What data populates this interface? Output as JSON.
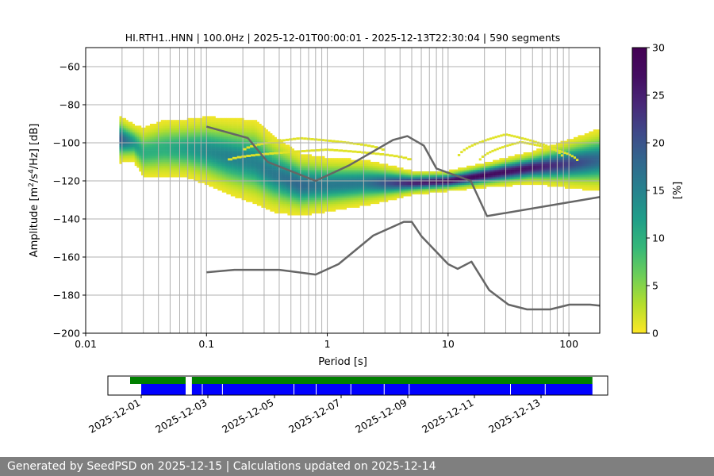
{
  "chart_data": [
    {
      "type": "heatmap",
      "title": "HI.RTH1..HNN | 100.0Hz | 2025-12-01T00:00:01 - 2025-12-13T22:30:04 | 590 segments",
      "xlabel": "Period [s]",
      "ylabel_parts": [
        "Amplitude [m",
        "2",
        "/s",
        "4",
        "/Hz] [dB]"
      ],
      "x_scale": "log",
      "xlim": [
        0.01,
        180
      ],
      "ylim": [
        -200,
        -50
      ],
      "x_ticks": [
        {
          "value": 0.01,
          "label": "0.01"
        },
        {
          "value": 0.1,
          "label": "0.1"
        },
        {
          "value": 1,
          "label": "1"
        },
        {
          "value": 10,
          "label": "10"
        },
        {
          "value": 100,
          "label": "100"
        }
      ],
      "y_ticks": [
        -60,
        -80,
        -100,
        -120,
        -140,
        -160,
        -180,
        -200
      ],
      "y_tick_labels": [
        "−60",
        "−80",
        "−100",
        "−120",
        "−140",
        "−160",
        "−180",
        "−200"
      ],
      "grid_periods": [
        0.02,
        0.03,
        0.04,
        0.05,
        0.06,
        0.07,
        0.08,
        0.09,
        0.1,
        0.2,
        0.3,
        0.4,
        0.5,
        0.6,
        0.7,
        0.8,
        0.9,
        1,
        2,
        3,
        4,
        5,
        6,
        7,
        8,
        9,
        10,
        20,
        30,
        40,
        50,
        60,
        70,
        80,
        90,
        100
      ],
      "grid_ylines": [
        -60,
        -80,
        -100,
        -120,
        -140,
        -160,
        -180
      ],
      "colorbar": {
        "label": "[%]",
        "range": [
          0,
          30
        ],
        "ticks": [
          0,
          5,
          10,
          15,
          20,
          25,
          30
        ],
        "colormap": "viridis_r"
      },
      "ppsd_ridge": [
        {
          "period": 0.019,
          "mode_db": -98,
          "width_db": 6,
          "peak_pct": 20
        },
        {
          "period": 0.025,
          "mode_db": -100,
          "width_db": 5,
          "peak_pct": 13
        },
        {
          "period": 0.03,
          "mode_db": -105,
          "width_db": 7,
          "peak_pct": 10
        },
        {
          "period": 0.045,
          "mode_db": -103,
          "width_db": 8,
          "peak_pct": 10
        },
        {
          "period": 0.07,
          "mode_db": -103,
          "width_db": 8,
          "peak_pct": 12
        },
        {
          "period": 0.1,
          "mode_db": -104,
          "width_db": 9,
          "peak_pct": 14
        },
        {
          "period": 0.15,
          "mode_db": -107,
          "width_db": 10,
          "peak_pct": 15
        },
        {
          "period": 0.25,
          "mode_db": -110,
          "width_db": 11,
          "peak_pct": 15
        },
        {
          "period": 0.35,
          "mode_db": -116,
          "width_db": 10,
          "peak_pct": 16
        },
        {
          "period": 0.6,
          "mode_db": -122,
          "width_db": 8,
          "peak_pct": 18
        },
        {
          "period": 1.0,
          "mode_db": -122,
          "width_db": 7,
          "peak_pct": 16
        },
        {
          "period": 2.0,
          "mode_db": -121,
          "width_db": 6,
          "peak_pct": 16
        },
        {
          "period": 5.0,
          "mode_db": -121,
          "width_db": 3,
          "peak_pct": 25
        },
        {
          "period": 10,
          "mode_db": -120,
          "width_db": 2.5,
          "peak_pct": 28
        },
        {
          "period": 20,
          "mode_db": -117,
          "width_db": 3,
          "peak_pct": 28
        },
        {
          "period": 50,
          "mode_db": -113,
          "width_db": 4,
          "peak_pct": 26
        },
        {
          "period": 100,
          "mode_db": -111,
          "width_db": 6,
          "peak_pct": 22
        },
        {
          "period": 180,
          "mode_db": -109,
          "width_db": 8,
          "peak_pct": 18
        }
      ],
      "sparse_arcs": [
        {
          "p_from": 0.2,
          "p_to": 3.0,
          "db_top": -97,
          "db_bottom": -104,
          "arc_p": 0.6
        },
        {
          "p_from": 0.15,
          "p_to": 5.0,
          "db_top": -103,
          "db_bottom": -109,
          "arc_p": 1.0
        },
        {
          "p_from": 12,
          "p_to": 90,
          "db_top": -95,
          "db_bottom": -108,
          "arc_p": 30
        },
        {
          "p_from": 18,
          "p_to": 120,
          "db_top": -99,
          "db_bottom": -110,
          "arc_p": 40
        }
      ],
      "series": [
        {
          "name": "",
          "points": [
            [
              0.1,
              -91.5
            ],
            [
              0.22,
              -97.5
            ],
            [
              0.32,
              -110
            ],
            [
              0.8,
              -120
            ],
            [
              1.5,
              -112
            ],
            [
              3.5,
              -98.5
            ],
            [
              4.6,
              -96.5
            ],
            [
              6.3,
              -101.5
            ],
            [
              8,
              -113.5
            ],
            [
              15.4,
              -120
            ],
            [
              21,
              -138.5
            ],
            [
              180,
              -128.5
            ]
          ]
        },
        {
          "name": "",
          "points": [
            [
              0.1,
              -168
            ],
            [
              0.17,
              -166.7
            ],
            [
              0.4,
              -166.7
            ],
            [
              0.8,
              -169.2
            ],
            [
              1.24,
              -163.7
            ],
            [
              2.4,
              -148.7
            ],
            [
              4.3,
              -141.5
            ],
            [
              5.0,
              -141.5
            ],
            [
              6.0,
              -149
            ],
            [
              10,
              -163.7
            ],
            [
              12,
              -166.2
            ],
            [
              15.6,
              -162.4
            ],
            [
              21.9,
              -177.4
            ],
            [
              31.6,
              -185
            ],
            [
              45,
              -187.5
            ],
            [
              70,
              -187.5
            ],
            [
              101,
              -185
            ],
            [
              150,
              -185
            ],
            [
              180,
              -185.5
            ]
          ]
        }
      ]
    },
    {
      "type": "timeline",
      "x_range": [
        "2025-11-30",
        "2025-12-15"
      ],
      "date_ticks": [
        "2025-12-01",
        "2025-12-03",
        "2025-12-05",
        "2025-12-07",
        "2025-12-09",
        "2025-12-11",
        "2025-12-13"
      ],
      "data_segments": [
        [
          "2025-11-30T16:00",
          "2025-12-02T08:00"
        ],
        [
          "2025-12-02T12:30",
          "2025-12-14T13:00"
        ]
      ],
      "processed_segments": [
        [
          "2025-12-01T00:00",
          "2025-12-02T08:00"
        ],
        [
          "2025-12-02T12:30",
          "2025-12-14T13:00"
        ]
      ],
      "processed_gaps": [
        "2025-12-02T20:00",
        "2025-12-03T10:30",
        "2025-12-05T14:00",
        "2025-12-06T06:00",
        "2025-12-07T07:00",
        "2025-12-08T07:00",
        "2025-12-09T01:00",
        "2025-12-12T02:00",
        "2025-12-13T03:00"
      ]
    }
  ],
  "footer": {
    "text": "Generated by SeedPSD on 2025-12-15 | Calculations updated on 2025-12-14"
  }
}
